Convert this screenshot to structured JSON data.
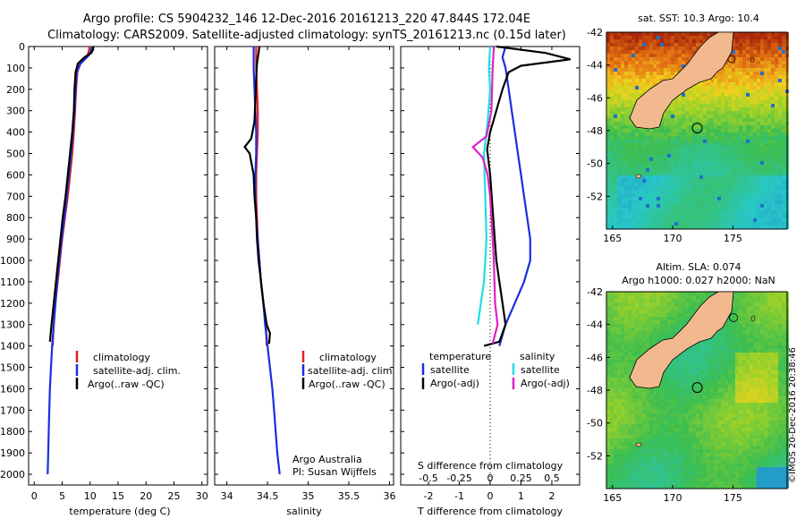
{
  "header": {
    "title_line1": "Argo profile: CS 5904232_146 12-Dec-2016 20161213_220 47.844S 172.04E",
    "title_line2": "Climatology: CARS2009. Satellite-adjusted climatology: synTS_20161213.nc (0.15d later)"
  },
  "colors": {
    "climatology": "#e0201a",
    "satellite": "#1a2ee0",
    "argo": "#000000",
    "sal_satellite": "#22dde6",
    "sal_argo": "#e020c8",
    "land": "#f2b98f"
  },
  "chart_data": [
    {
      "type": "line",
      "panel": "temperature",
      "xlabel": "temperature (deg C)",
      "x_ticks": [
        "0",
        "5",
        "10",
        "15",
        "20",
        "25",
        "30"
      ],
      "y_ticks": [
        "0",
        "100",
        "200",
        "300",
        "400",
        "500",
        "600",
        "700",
        "800",
        "900",
        "1000",
        "1100",
        "1200",
        "1300",
        "1400",
        "1500",
        "1600",
        "1700",
        "1800",
        "1900",
        "2000"
      ],
      "xlim": [
        -1,
        31
      ],
      "ylim": [
        2050,
        0
      ],
      "legend": [
        "climatology",
        "satellite-adj. clim.",
        "Argo(..raw -QC)"
      ],
      "series": [
        {
          "name": "climatology",
          "points": [
            [
              9.9,
              0
            ],
            [
              9.8,
              20
            ],
            [
              9.4,
              50
            ],
            [
              8.2,
              80
            ],
            [
              7.7,
              120
            ],
            [
              7.5,
              200
            ],
            [
              7.3,
              300
            ],
            [
              7.1,
              400
            ],
            [
              6.8,
              500
            ],
            [
              6.4,
              600
            ],
            [
              6.0,
              700
            ],
            [
              5.5,
              800
            ],
            [
              5.0,
              900
            ],
            [
              4.6,
              1000
            ],
            [
              4.2,
              1100
            ],
            [
              3.8,
              1200
            ],
            [
              3.5,
              1300
            ],
            [
              3.3,
              1400
            ]
          ]
        },
        {
          "name": "satellite-adj. clim.",
          "points": [
            [
              10.4,
              0
            ],
            [
              10.2,
              20
            ],
            [
              9.8,
              40
            ],
            [
              8.3,
              80
            ],
            [
              7.6,
              120
            ],
            [
              7.4,
              200
            ],
            [
              7.2,
              300
            ],
            [
              6.9,
              400
            ],
            [
              6.6,
              500
            ],
            [
              6.2,
              600
            ],
            [
              5.8,
              700
            ],
            [
              5.4,
              800
            ],
            [
              4.9,
              900
            ],
            [
              4.5,
              1000
            ],
            [
              4.1,
              1100
            ],
            [
              3.8,
              1200
            ],
            [
              3.5,
              1300
            ],
            [
              3.2,
              1400
            ],
            [
              3.0,
              1500
            ],
            [
              2.8,
              1600
            ],
            [
              2.7,
              1700
            ],
            [
              2.6,
              1800
            ],
            [
              2.5,
              1900
            ],
            [
              2.4,
              2000
            ]
          ]
        },
        {
          "name": "Argo(..raw -QC)",
          "points": [
            [
              10.6,
              0
            ],
            [
              10.5,
              15
            ],
            [
              10.2,
              30
            ],
            [
              9.0,
              50
            ],
            [
              7.8,
              80
            ],
            [
              7.4,
              120
            ],
            [
              7.2,
              200
            ],
            [
              7.1,
              300
            ],
            [
              6.8,
              400
            ],
            [
              6.4,
              500
            ],
            [
              6.0,
              600
            ],
            [
              5.6,
              700
            ],
            [
              5.1,
              800
            ],
            [
              4.7,
              900
            ],
            [
              4.3,
              1000
            ],
            [
              3.9,
              1100
            ],
            [
              3.5,
              1200
            ],
            [
              3.1,
              1300
            ],
            [
              2.8,
              1380
            ]
          ]
        }
      ]
    },
    {
      "type": "line",
      "panel": "salinity",
      "xlabel": "salinity",
      "x_ticks": [
        "34",
        "34.5",
        "35",
        "35.5",
        "36"
      ],
      "xlim": [
        33.85,
        36.05
      ],
      "ylim": [
        2050,
        0
      ],
      "legend": [
        "climatology",
        "satellite-adj. clim.",
        "Argo(..raw -QC)"
      ],
      "annotation_line1": "Argo Australia",
      "annotation_line2": "PI: Susan Wijffels",
      "series": [
        {
          "name": "climatology",
          "points": [
            [
              34.36,
              0
            ],
            [
              34.36,
              100
            ],
            [
              34.37,
              200
            ],
            [
              34.38,
              300
            ],
            [
              34.38,
              400
            ],
            [
              34.37,
              500
            ],
            [
              34.36,
              600
            ],
            [
              34.36,
              700
            ],
            [
              34.37,
              800
            ],
            [
              34.38,
              900
            ],
            [
              34.4,
              1000
            ],
            [
              34.42,
              1100
            ],
            [
              34.45,
              1200
            ],
            [
              34.48,
              1300
            ],
            [
              34.49,
              1400
            ]
          ]
        },
        {
          "name": "satellite-adj. clim.",
          "points": [
            [
              34.33,
              0
            ],
            [
              34.33,
              100
            ],
            [
              34.34,
              200
            ],
            [
              34.35,
              300
            ],
            [
              34.36,
              400
            ],
            [
              34.36,
              500
            ],
            [
              34.35,
              600
            ],
            [
              34.35,
              700
            ],
            [
              34.36,
              800
            ],
            [
              34.38,
              900
            ],
            [
              34.4,
              1000
            ],
            [
              34.42,
              1100
            ],
            [
              34.45,
              1200
            ],
            [
              34.47,
              1300
            ],
            [
              34.5,
              1400
            ],
            [
              34.53,
              1500
            ],
            [
              34.56,
              1600
            ],
            [
              34.58,
              1700
            ],
            [
              34.6,
              1800
            ],
            [
              34.62,
              1900
            ],
            [
              34.65,
              2000
            ]
          ]
        },
        {
          "name": "Argo(..raw -QC)",
          "points": [
            [
              34.4,
              0
            ],
            [
              34.39,
              30
            ],
            [
              34.37,
              80
            ],
            [
              34.36,
              150
            ],
            [
              34.35,
              250
            ],
            [
              34.34,
              350
            ],
            [
              34.3,
              430
            ],
            [
              34.22,
              470
            ],
            [
              34.28,
              500
            ],
            [
              34.3,
              540
            ],
            [
              34.33,
              600
            ],
            [
              34.34,
              700
            ],
            [
              34.36,
              800
            ],
            [
              34.37,
              900
            ],
            [
              34.39,
              1000
            ],
            [
              34.42,
              1100
            ],
            [
              34.45,
              1200
            ],
            [
              34.49,
              1300
            ],
            [
              34.53,
              1340
            ],
            [
              34.52,
              1390
            ]
          ]
        }
      ]
    },
    {
      "type": "line",
      "panel": "difference",
      "xlabel": "T difference from climatology",
      "xlabel_top": "S difference from climatology",
      "x_ticks": [
        "-2",
        "-1",
        "0",
        "1",
        "2"
      ],
      "x_ticks_top": [
        "-0.5",
        "-0.25",
        "0",
        "0.25",
        "0.5"
      ],
      "xlim": [
        -2.9,
        2.9
      ],
      "ylim": [
        2050,
        0
      ],
      "legend_temperature": [
        "temperature",
        "satellite",
        "Argo(-adj)"
      ],
      "legend_salinity": [
        "salinity",
        "satellite",
        "Argo(-adj)"
      ],
      "series": [
        {
          "name": "satellite",
          "points": [
            [
              0.5,
              0
            ],
            [
              0.4,
              50
            ],
            [
              0.5,
              100
            ],
            [
              0.6,
              200
            ],
            [
              0.7,
              300
            ],
            [
              0.8,
              400
            ],
            [
              0.9,
              500
            ],
            [
              1.0,
              600
            ],
            [
              1.1,
              700
            ],
            [
              1.2,
              800
            ],
            [
              1.3,
              900
            ],
            [
              1.3,
              1000
            ],
            [
              1.1,
              1100
            ],
            [
              0.8,
              1200
            ],
            [
              0.5,
              1300
            ],
            [
              0.3,
              1400
            ]
          ]
        },
        {
          "name": "Argo(-adj)",
          "points": [
            [
              0.2,
              0
            ],
            [
              1.8,
              30
            ],
            [
              2.6,
              60
            ],
            [
              1.0,
              90
            ],
            [
              0.6,
              120
            ],
            [
              0.4,
              200
            ],
            [
              0.2,
              300
            ],
            [
              0.0,
              400
            ],
            [
              -0.1,
              480
            ],
            [
              0.0,
              600
            ],
            [
              0.1,
              800
            ],
            [
              0.2,
              1000
            ],
            [
              0.3,
              1100
            ],
            [
              0.4,
              1200
            ],
            [
              0.5,
              1300
            ],
            [
              0.3,
              1380
            ],
            [
              -0.2,
              1400
            ]
          ]
        },
        {
          "name": "sal satellite",
          "points": [
            [
              0.0,
              0
            ],
            [
              -0.01,
              100
            ],
            [
              0.0,
              200
            ],
            [
              -0.02,
              350
            ],
            [
              -0.05,
              500
            ],
            [
              -0.04,
              700
            ],
            [
              -0.03,
              900
            ],
            [
              -0.05,
              1100
            ],
            [
              -0.1,
              1300
            ]
          ]
        },
        {
          "name": "sal Argo(-adj)",
          "points": [
            [
              0.03,
              0
            ],
            [
              0.02,
              100
            ],
            [
              0.01,
              300
            ],
            [
              -0.03,
              420
            ],
            [
              -0.14,
              470
            ],
            [
              -0.06,
              520
            ],
            [
              -0.02,
              600
            ],
            [
              0.0,
              700
            ],
            [
              0.01,
              800
            ],
            [
              0.02,
              900
            ],
            [
              0.03,
              1000
            ],
            [
              0.04,
              1200
            ],
            [
              0.06,
              1300
            ],
            [
              0.02,
              1390
            ]
          ]
        }
      ]
    },
    {
      "type": "heatmap",
      "panel": "sst_map",
      "title": "sat. SST: 10.3 Argo: 10.4",
      "x_ticks": [
        "165",
        "170",
        "175"
      ],
      "y_ticks": [
        "-42",
        "-44",
        "-46",
        "-48",
        "-50",
        "-52"
      ],
      "xlim": [
        164.5,
        179.5
      ],
      "ylim": [
        -54,
        -42
      ],
      "float_position": [
        172.04,
        -47.844
      ]
    },
    {
      "type": "heatmap",
      "panel": "sla_map",
      "title_line1": "Altim. SLA: 0.074",
      "title_line2": "Argo h1000: 0.027 h2000: NaN",
      "x_ticks": [
        "165",
        "170",
        "175"
      ],
      "y_ticks": [
        "-42",
        "-44",
        "-46",
        "-48",
        "-50",
        "-52"
      ],
      "xlim": [
        164.5,
        179.5
      ],
      "ylim": [
        -54,
        -42
      ],
      "float_position": [
        172.04,
        -47.844
      ],
      "credit": "©IMOS 20-Dec-2016 20:38:46"
    }
  ]
}
